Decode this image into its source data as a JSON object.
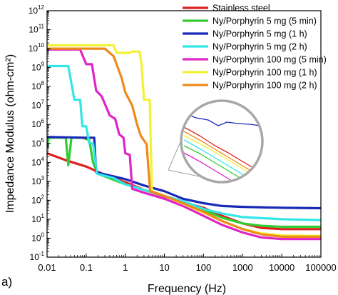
{
  "panel_label": "a)",
  "chart_data": {
    "type": "line",
    "title": "",
    "xlabel": "Frequency (Hz)",
    "ylabel": "Impedance Modulus (ohm-cm²)",
    "x_scale": "log",
    "y_scale": "log",
    "xlim": [
      0.01,
      100000
    ],
    "ylim": [
      0.1,
      1000000000000
    ],
    "x_ticks": [
      {
        "v": 0.01,
        "label": "0.01"
      },
      {
        "v": 0.1,
        "label": "0.1"
      },
      {
        "v": 1,
        "label": "1"
      },
      {
        "v": 10,
        "label": "10"
      },
      {
        "v": 100,
        "label": "100"
      },
      {
        "v": 1000,
        "label": "1000"
      },
      {
        "v": 10000,
        "label": "10000"
      },
      {
        "v": 100000,
        "label": "100000"
      }
    ],
    "y_ticks": [
      {
        "v": 0.1,
        "base": "10",
        "exp": "-1"
      },
      {
        "v": 1,
        "base": "10",
        "exp": "0"
      },
      {
        "v": 10,
        "base": "10",
        "exp": "1"
      },
      {
        "v": 100,
        "base": "10",
        "exp": "2"
      },
      {
        "v": 1000,
        "base": "10",
        "exp": "3"
      },
      {
        "v": 10000,
        "base": "10",
        "exp": "4"
      },
      {
        "v": 100000,
        "base": "10",
        "exp": "5"
      },
      {
        "v": 1000000,
        "base": "10",
        "exp": "6"
      },
      {
        "v": 10000000,
        "base": "10",
        "exp": "7"
      },
      {
        "v": 100000000,
        "base": "10",
        "exp": "8"
      },
      {
        "v": 1000000000,
        "base": "10",
        "exp": "9"
      },
      {
        "v": 10000000000,
        "base": "10",
        "exp": "10"
      },
      {
        "v": 100000000000,
        "base": "10",
        "exp": "11"
      },
      {
        "v": 1000000000000,
        "base": "10",
        "exp": "12"
      }
    ],
    "grid": false,
    "legend_position": "top-right",
    "inset": "magnified view of the curves near 10–100 Hz",
    "series": [
      {
        "name": "Stainless steel",
        "color": "#dd2020",
        "points": [
          [
            0.01,
            30000
          ],
          [
            0.03,
            13000
          ],
          [
            0.1,
            6000
          ],
          [
            0.3,
            2200
          ],
          [
            1,
            900
          ],
          [
            3,
            350
          ],
          [
            10,
            160
          ],
          [
            30,
            80
          ],
          [
            100,
            40
          ],
          [
            300,
            15
          ],
          [
            1000,
            6
          ],
          [
            3000,
            3.5
          ],
          [
            10000,
            3
          ],
          [
            100000,
            3
          ]
        ]
      },
      {
        "name": "Ny/Porphyrin 5 mg (5 min)",
        "color": "#33cc33",
        "points": [
          [
            0.01,
            60000
          ],
          [
            0.011,
            200000
          ],
          [
            0.03,
            200000
          ],
          [
            0.035,
            7000
          ],
          [
            0.042,
            200000
          ],
          [
            0.08,
            200000
          ],
          [
            0.12,
            150000
          ],
          [
            0.15,
            10000
          ],
          [
            0.2,
            2500
          ],
          [
            0.5,
            1200
          ],
          [
            1,
            700
          ],
          [
            3,
            350
          ],
          [
            10,
            170
          ],
          [
            30,
            80
          ],
          [
            100,
            30
          ],
          [
            300,
            12
          ],
          [
            1000,
            6
          ],
          [
            3000,
            4.5
          ],
          [
            10000,
            4
          ],
          [
            100000,
            4
          ]
        ]
      },
      {
        "name": "Ny/Porphyrin 5 mg (1 h)",
        "color": "#1a2ab8",
        "points": [
          [
            0.01,
            220000
          ],
          [
            0.1,
            200000
          ],
          [
            0.16,
            200000
          ],
          [
            0.18,
            3000
          ],
          [
            1,
            1300
          ],
          [
            3,
            600
          ],
          [
            10,
            300
          ],
          [
            30,
            120
          ],
          [
            100,
            70
          ],
          [
            300,
            50
          ],
          [
            1000,
            45
          ],
          [
            10000,
            40
          ],
          [
            100000,
            38
          ]
        ]
      },
      {
        "name": "Ny/Porphyrin 5 mg (2 h)",
        "color": "#33e6e6",
        "points": [
          [
            0.01,
            1200000000
          ],
          [
            0.035,
            1200000000
          ],
          [
            0.05,
            20000000
          ],
          [
            0.07,
            20000000
          ],
          [
            0.08,
            800000
          ],
          [
            0.1,
            800000
          ],
          [
            0.12,
            100000
          ],
          [
            0.15,
            100000
          ],
          [
            0.19,
            2500
          ],
          [
            0.5,
            1500
          ],
          [
            1,
            700
          ],
          [
            3,
            350
          ],
          [
            10,
            170
          ],
          [
            30,
            90
          ],
          [
            100,
            35
          ],
          [
            300,
            20
          ],
          [
            1000,
            13
          ],
          [
            10000,
            10
          ],
          [
            100000,
            9
          ]
        ]
      },
      {
        "name": "Ny/Porphyrin 100 mg (5 min)",
        "color": "#e024c8",
        "points": [
          [
            0.01,
            9000000000
          ],
          [
            0.07,
            9000000000
          ],
          [
            0.1,
            1500000000
          ],
          [
            0.14,
            1500000000
          ],
          [
            0.18,
            60000000
          ],
          [
            0.25,
            30000000
          ],
          [
            0.4,
            3000000
          ],
          [
            0.55,
            2000000
          ],
          [
            0.7,
            300000
          ],
          [
            0.9,
            200000
          ],
          [
            1,
            30000
          ],
          [
            1.3,
            25000
          ],
          [
            1.5,
            400
          ],
          [
            3,
            250
          ],
          [
            10,
            120
          ],
          [
            30,
            50
          ],
          [
            100,
            15
          ],
          [
            300,
            5
          ],
          [
            1000,
            2
          ],
          [
            3000,
            1.1
          ],
          [
            10000,
            0.9
          ],
          [
            100000,
            0.9
          ]
        ]
      },
      {
        "name": "Ny/Porphyrin 100 mg (1 h)",
        "color": "#f2f232",
        "points": [
          [
            0.01,
            15000000000
          ],
          [
            0.5,
            15000000000
          ],
          [
            0.6,
            6000000000
          ],
          [
            1.3,
            6000000000
          ],
          [
            1.5,
            7000000000
          ],
          [
            2.3,
            7000000000
          ],
          [
            2.6,
            1500000000
          ],
          [
            3,
            20000000
          ],
          [
            4.2,
            20000000
          ],
          [
            4.8,
            300
          ],
          [
            10,
            170
          ],
          [
            30,
            65
          ],
          [
            100,
            22
          ],
          [
            300,
            8
          ],
          [
            1000,
            3
          ],
          [
            3000,
            1.8
          ],
          [
            10000,
            1.4
          ],
          [
            100000,
            1.3
          ]
        ]
      },
      {
        "name": "Ny/Porphyrin 100 mg (2 h)",
        "color": "#ee8a1a",
        "points": [
          [
            0.01,
            10000000000
          ],
          [
            0.3,
            10000000000
          ],
          [
            0.5,
            4000000000
          ],
          [
            0.8,
            300000000
          ],
          [
            1,
            50000000
          ],
          [
            1.5,
            10000000
          ],
          [
            2,
            1000000
          ],
          [
            2.5,
            250000
          ],
          [
            3.5,
            90000
          ],
          [
            4.3,
            300
          ],
          [
            10,
            170
          ],
          [
            30,
            70
          ],
          [
            100,
            25
          ],
          [
            300,
            8
          ],
          [
            1000,
            3
          ],
          [
            3000,
            1.6
          ],
          [
            10000,
            1.2
          ],
          [
            100000,
            1.2
          ]
        ]
      }
    ]
  }
}
